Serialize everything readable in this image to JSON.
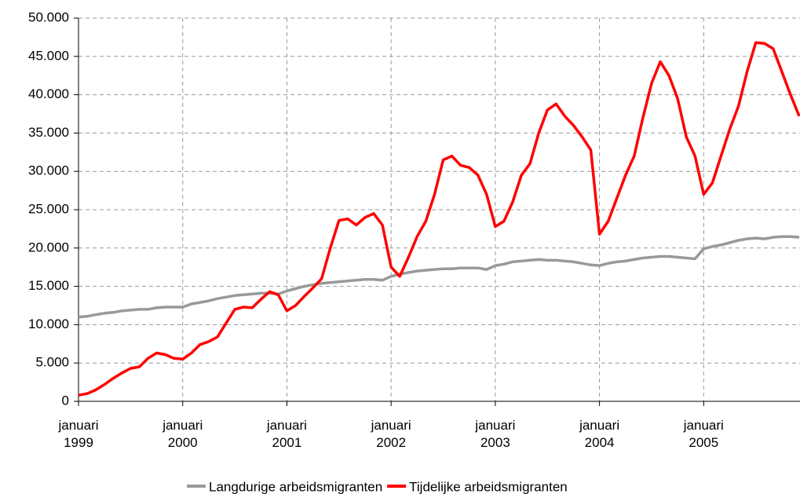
{
  "chart_data": {
    "type": "line",
    "categories": [
      "januari 1999",
      null,
      null,
      null,
      null,
      null,
      null,
      null,
      null,
      null,
      null,
      null,
      "januari 2000",
      null,
      null,
      null,
      null,
      null,
      null,
      null,
      null,
      null,
      null,
      null,
      "januari 2001",
      null,
      null,
      null,
      null,
      null,
      null,
      null,
      null,
      null,
      null,
      null,
      "januari 2002",
      null,
      null,
      null,
      null,
      null,
      null,
      null,
      null,
      null,
      null,
      null,
      "januari 2003",
      null,
      null,
      null,
      null,
      null,
      null,
      null,
      null,
      null,
      null,
      null,
      "januari 2004",
      null,
      null,
      null,
      null,
      null,
      null,
      null,
      null,
      null,
      null,
      null,
      "januari 2005",
      null,
      null,
      null,
      null,
      null,
      null,
      null,
      null,
      null,
      null,
      null
    ],
    "series": [
      {
        "name": "Langdurige arbeidsmigranten",
        "color": "#999999",
        "values": [
          11000,
          11100,
          11300,
          11500,
          11600,
          11800,
          11900,
          12000,
          12000,
          12200,
          12300,
          12300,
          12300,
          12700,
          12900,
          13100,
          13400,
          13600,
          13800,
          13900,
          14000,
          14100,
          14100,
          14000,
          14400,
          14700,
          15000,
          15200,
          15400,
          15500,
          15600,
          15700,
          15800,
          15900,
          15900,
          15800,
          16300,
          16600,
          16800,
          17000,
          17100,
          17200,
          17300,
          17300,
          17400,
          17400,
          17400,
          17200,
          17700,
          17900,
          18200,
          18300,
          18400,
          18500,
          18400,
          18400,
          18300,
          18200,
          18000,
          17800,
          17700,
          18000,
          18200,
          18300,
          18500,
          18700,
          18800,
          18900,
          18900,
          18800,
          18700,
          18600,
          19900,
          20200,
          20400,
          20700,
          21000,
          21200,
          21300,
          21200,
          21400,
          21500,
          21500,
          21400
        ]
      },
      {
        "name": "Tijdelijke arbeidsmigranten",
        "color": "#ff0000",
        "values": [
          800,
          1000,
          1500,
          2200,
          3000,
          3700,
          4300,
          4500,
          5600,
          6300,
          6100,
          5600,
          5500,
          6300,
          7400,
          7800,
          8400,
          10200,
          12000,
          12300,
          12200,
          13300,
          14300,
          13900,
          11800,
          12500,
          13700,
          14800,
          16000,
          20000,
          23600,
          23800,
          23000,
          24000,
          24500,
          23000,
          17500,
          16300,
          18800,
          21500,
          23500,
          27000,
          31500,
          32000,
          30800,
          30500,
          29500,
          27000,
          22800,
          23500,
          26000,
          29500,
          31000,
          35000,
          38000,
          38800,
          37200,
          36000,
          34500,
          32800,
          21800,
          23500,
          26500,
          29500,
          32000,
          37000,
          41500,
          44300,
          42500,
          39500,
          34500,
          32000,
          27000,
          28500,
          32000,
          35500,
          38500,
          43000,
          46800,
          46700,
          46000,
          43000,
          40000,
          37200
        ]
      }
    ],
    "ylim": [
      0,
      50000
    ],
    "yticks": [
      {
        "value": 0,
        "label": "0"
      },
      {
        "value": 5000,
        "label": "5.000"
      },
      {
        "value": 10000,
        "label": "10.000"
      },
      {
        "value": 15000,
        "label": "15.000"
      },
      {
        "value": 20000,
        "label": "20.000"
      },
      {
        "value": 25000,
        "label": "25.000"
      },
      {
        "value": 30000,
        "label": "30.000"
      },
      {
        "value": 35000,
        "label": "35.000"
      },
      {
        "value": 40000,
        "label": "40.000"
      },
      {
        "value": 45000,
        "label": "45.000"
      },
      {
        "value": 50000,
        "label": "50.000"
      }
    ],
    "grid": true,
    "legend": "bottom"
  }
}
